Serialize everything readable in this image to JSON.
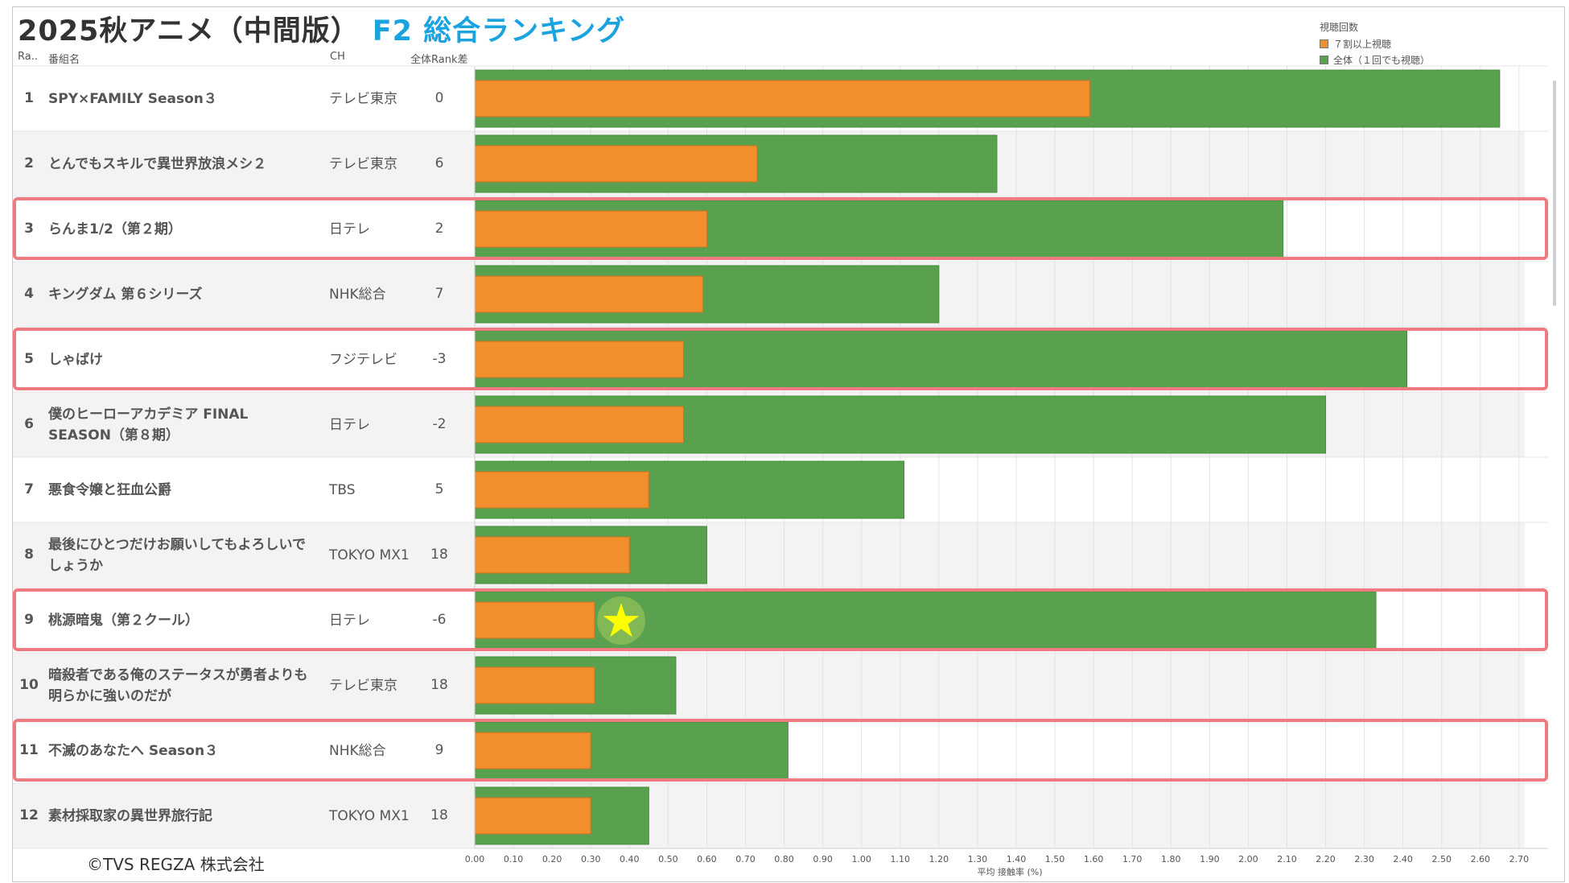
{
  "header": {
    "title": "2025秋アニメ（中間版）",
    "subtitle": "F2 総合ランキング",
    "col_rank": "Ra..",
    "col_name": "番組名",
    "col_ch": "CH",
    "col_diff": "全体Rank差"
  },
  "legend": {
    "title": "視聴回数",
    "items": [
      {
        "label": "７割以上視聴",
        "color": "#f28e2b"
      },
      {
        "label": "全体（１回でも視聴）",
        "color": "#59a14f"
      }
    ]
  },
  "rows": [
    {
      "rank": "1",
      "name": "SPY×FAMILY Season３",
      "ch": "テレビ東京",
      "diff": "0",
      "highlight": false
    },
    {
      "rank": "2",
      "name": "とんでもスキルで異世界放浪メシ２",
      "ch": "テレビ東京",
      "diff": "6",
      "highlight": false
    },
    {
      "rank": "3",
      "name": "らんま1/2（第２期）",
      "ch": "日テレ",
      "diff": "2",
      "highlight": true
    },
    {
      "rank": "4",
      "name": "キングダム 第６シリーズ",
      "ch": "NHK総合",
      "diff": "7",
      "highlight": false
    },
    {
      "rank": "5",
      "name": "しゃばけ",
      "ch": "フジテレビ",
      "diff": "-3",
      "highlight": true
    },
    {
      "rank": "6",
      "name": "僕のヒーローアカデミア FINAL SEASON（第８期）",
      "ch": "日テレ",
      "diff": "-2",
      "highlight": false
    },
    {
      "rank": "7",
      "name": "悪食令嬢と狂血公爵",
      "ch": "TBS",
      "diff": "5",
      "highlight": false
    },
    {
      "rank": "8",
      "name": "最後にひとつだけお願いしてもよろしいでしょうか",
      "ch": "TOKYO MX1",
      "diff": "18",
      "highlight": false
    },
    {
      "rank": "9",
      "name": "桃源暗鬼（第２クール）",
      "ch": "日テレ",
      "diff": "-6",
      "highlight": true
    },
    {
      "rank": "10",
      "name": "暗殺者である俺のステータスが勇者よりも明らかに強いのだが",
      "ch": "テレビ東京",
      "diff": "18",
      "highlight": false
    },
    {
      "rank": "11",
      "name": "不滅のあなたへ Season３",
      "ch": "NHK総合",
      "diff": "9",
      "highlight": true
    },
    {
      "rank": "12",
      "name": "素材採取家の異世界旅行記",
      "ch": "TOKYO MX1",
      "diff": "18",
      "highlight": false
    }
  ],
  "chart_data": {
    "type": "bar",
    "orientation": "horizontal",
    "overlay": true,
    "categories": [
      "SPY×FAMILY Season３",
      "とんでもスキルで異世界放浪メシ２",
      "らんま1/2（第２期）",
      "キングダム 第６シリーズ",
      "しゃばけ",
      "僕のヒーローアカデミア FINAL SEASON（第８期）",
      "悪食令嬢と狂血公爵",
      "最後にひとつだけお願いしてもよろしいでしょうか",
      "桃源暗鬼（第２クール）",
      "暗殺者である俺のステータスが勇者よりも明らかに強いのだが",
      "不滅のあなたへ Season３",
      "素材採取家の異世界旅行記"
    ],
    "series": [
      {
        "name": "全体（１回でも視聴）",
        "color": "#59a14f",
        "values": [
          2.65,
          1.35,
          2.09,
          1.2,
          2.41,
          2.2,
          1.11,
          0.6,
          2.33,
          0.52,
          0.81,
          0.45
        ]
      },
      {
        "name": "７割以上視聴",
        "color": "#f28e2b",
        "values": [
          1.59,
          0.73,
          0.6,
          0.59,
          0.54,
          0.54,
          0.45,
          0.4,
          0.31,
          0.31,
          0.3,
          0.3
        ]
      }
    ],
    "xlabel": "平均 接触率 (%)",
    "xlim": [
      0,
      2.75
    ],
    "xticks": [
      "0.00",
      "0.10",
      "0.20",
      "0.30",
      "0.40",
      "0.50",
      "0.60",
      "0.70",
      "0.80",
      "0.90",
      "1.00",
      "1.10",
      "1.20",
      "1.30",
      "1.40",
      "1.50",
      "1.60",
      "1.70",
      "1.80",
      "1.90",
      "2.00",
      "2.10",
      "2.20",
      "2.30",
      "2.40",
      "2.50",
      "2.60",
      "2.70"
    ],
    "marker": {
      "row": 9,
      "symbol": "★",
      "color": "#ffff00"
    }
  },
  "footer": {
    "copyright": "©TVS REGZA 株式会社"
  }
}
